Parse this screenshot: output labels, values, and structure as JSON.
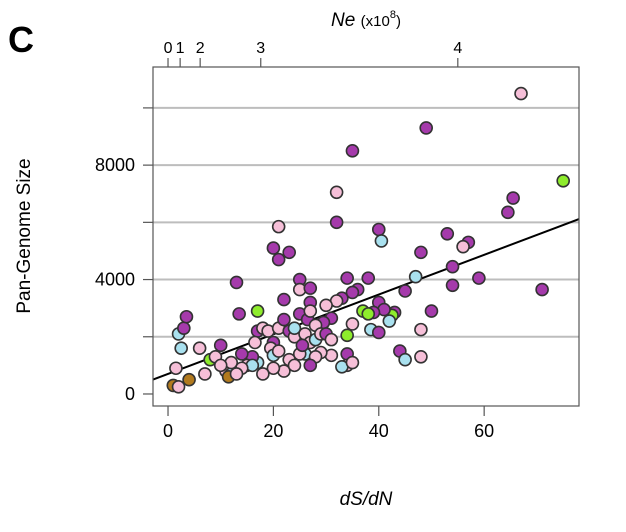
{
  "chart_data": {
    "type": "scatter",
    "panel_label": "C",
    "xlabel": "dS/dN",
    "ylabel": "Pan-Genome Size",
    "top_axis": {
      "label_main": "Ne",
      "label_paren": "(x10",
      "label_exp": "8",
      "label_close": ")",
      "ticks": [
        {
          "label": "0",
          "x": 0
        },
        {
          "label": "1",
          "x": 2.3
        },
        {
          "label": "2",
          "x": 6.1
        },
        {
          "label": "3",
          "x": 17.6
        },
        {
          "label": "4",
          "x": 55
        }
      ]
    },
    "xlim": [
      -2.85,
      78
    ],
    "ylim": [
      -420,
      11430
    ],
    "xticks": [
      0,
      20,
      40,
      60
    ],
    "yticks_labeled": [
      0,
      4000,
      8000
    ],
    "yticks": [
      0,
      2000,
      4000,
      6000,
      8000,
      10000
    ],
    "grid": {
      "horizontal": true,
      "values": [
        2000,
        4000,
        6000,
        8000,
        10000
      ],
      "color": "#bdbdbd"
    },
    "fit_line": {
      "slope": 69.4,
      "intercept": 700
    },
    "colors": {
      "P": "#a53aab",
      "K": "#f6bfd8",
      "B": "#a9e1ef",
      "G": "#8eec2c",
      "N": "#b27a1e"
    },
    "points": [
      [
        67,
        10500,
        "K"
      ],
      [
        49,
        9300,
        "P"
      ],
      [
        35,
        8500,
        "P"
      ],
      [
        32,
        7050,
        "K"
      ],
      [
        32,
        6000,
        "P"
      ],
      [
        21,
        5850,
        "K"
      ],
      [
        20,
        5100,
        "P"
      ],
      [
        21,
        4700,
        "P"
      ],
      [
        23,
        4950,
        "P"
      ],
      [
        40,
        5750,
        "P"
      ],
      [
        40.5,
        5350,
        "B"
      ],
      [
        75,
        7450,
        "G"
      ],
      [
        65.5,
        6850,
        "P"
      ],
      [
        64.5,
        6350,
        "P"
      ],
      [
        53,
        5600,
        "P"
      ],
      [
        57,
        5300,
        "P"
      ],
      [
        56,
        5150,
        "K"
      ],
      [
        48,
        4950,
        "P"
      ],
      [
        54,
        4450,
        "P"
      ],
      [
        54,
        3800,
        "P"
      ],
      [
        59,
        4050,
        "P"
      ],
      [
        47,
        4100,
        "B"
      ],
      [
        71,
        3650,
        "P"
      ],
      [
        45,
        3600,
        "P"
      ],
      [
        50,
        2900,
        "P"
      ],
      [
        44,
        1500,
        "P"
      ],
      [
        45,
        1200,
        "B"
      ],
      [
        48,
        2250,
        "K"
      ],
      [
        48,
        1300,
        "K"
      ],
      [
        43,
        2850,
        "P"
      ],
      [
        42.5,
        2750,
        "G"
      ],
      [
        42,
        2550,
        "B"
      ],
      [
        36,
        3650,
        "P"
      ],
      [
        38,
        4050,
        "P"
      ],
      [
        35,
        3550,
        "P"
      ],
      [
        40,
        3200,
        "P"
      ],
      [
        41,
        2950,
        "P"
      ],
      [
        39,
        2850,
        "P"
      ],
      [
        38.5,
        2250,
        "B"
      ],
      [
        40,
        2150,
        "P"
      ],
      [
        37,
        2900,
        "G"
      ],
      [
        38,
        2800,
        "G"
      ],
      [
        35,
        2450,
        "K"
      ],
      [
        33,
        3350,
        "P"
      ],
      [
        34,
        4050,
        "P"
      ],
      [
        31,
        2650,
        "P"
      ],
      [
        32,
        3250,
        "K"
      ],
      [
        34,
        2050,
        "G"
      ],
      [
        34,
        1400,
        "P"
      ],
      [
        34,
        1000,
        "K"
      ],
      [
        33,
        950,
        "B"
      ],
      [
        35,
        1100,
        "K"
      ],
      [
        31,
        1350,
        "K"
      ],
      [
        29,
        1450,
        "K"
      ],
      [
        30,
        3100,
        "K"
      ],
      [
        1,
        300,
        "N"
      ],
      [
        4,
        500,
        "N"
      ],
      [
        2,
        250,
        "K"
      ],
      [
        2,
        2100,
        "B"
      ],
      [
        3,
        2300,
        "P"
      ],
      [
        3.5,
        2700,
        "P"
      ],
      [
        2.5,
        1600,
        "B"
      ],
      [
        1.5,
        900,
        "K"
      ],
      [
        6,
        1600,
        "K"
      ],
      [
        7,
        700,
        "K"
      ],
      [
        8,
        1200,
        "G"
      ],
      [
        9,
        1300,
        "K"
      ],
      [
        10,
        1700,
        "P"
      ],
      [
        11,
        800,
        "K"
      ],
      [
        12,
        700,
        "B"
      ],
      [
        11.5,
        600,
        "N"
      ],
      [
        12,
        1100,
        "K"
      ],
      [
        13.5,
        2800,
        "P"
      ],
      [
        13,
        3900,
        "P"
      ],
      [
        17,
        2200,
        "P"
      ],
      [
        16.5,
        1800,
        "K"
      ],
      [
        17,
        1100,
        "B"
      ],
      [
        18,
        2300,
        "K"
      ],
      [
        16,
        1300,
        "P"
      ],
      [
        15,
        1000,
        "K"
      ],
      [
        17,
        2900,
        "G"
      ],
      [
        19,
        2200,
        "K"
      ],
      [
        20,
        1800,
        "P"
      ],
      [
        19.5,
        1600,
        "K"
      ],
      [
        20,
        1350,
        "B"
      ],
      [
        21,
        2300,
        "K"
      ],
      [
        22,
        2600,
        "P"
      ],
      [
        22,
        3300,
        "P"
      ],
      [
        23,
        2200,
        "P"
      ],
      [
        24,
        2000,
        "K"
      ],
      [
        25,
        2800,
        "P"
      ],
      [
        25,
        4000,
        "P"
      ],
      [
        25,
        3650,
        "K"
      ],
      [
        27,
        3700,
        "P"
      ],
      [
        27,
        3200,
        "P"
      ],
      [
        26.5,
        2600,
        "P"
      ],
      [
        26,
        2100,
        "K"
      ],
      [
        27,
        1800,
        "K"
      ],
      [
        26,
        1400,
        "B"
      ],
      [
        28,
        1300,
        "K"
      ],
      [
        27,
        1000,
        "P"
      ],
      [
        28,
        1900,
        "B"
      ],
      [
        29.5,
        2500,
        "P"
      ],
      [
        28,
        2400,
        "K"
      ],
      [
        23,
        1200,
        "K"
      ],
      [
        22,
        800,
        "K"
      ],
      [
        20,
        900,
        "K"
      ],
      [
        18,
        700,
        "K"
      ],
      [
        16,
        1000,
        "B"
      ],
      [
        14,
        900,
        "K"
      ],
      [
        13,
        700,
        "K"
      ],
      [
        24,
        1000,
        "K"
      ],
      [
        25,
        1400,
        "K"
      ],
      [
        25.5,
        1700,
        "P"
      ],
      [
        21,
        1500,
        "K"
      ],
      [
        24,
        2300,
        "B"
      ],
      [
        29,
        2100,
        "K"
      ],
      [
        30,
        2100,
        "P"
      ],
      [
        31,
        1900,
        "K"
      ],
      [
        27,
        2900,
        "K"
      ],
      [
        14,
        1400,
        "P"
      ],
      [
        10,
        1000,
        "K"
      ]
    ]
  }
}
